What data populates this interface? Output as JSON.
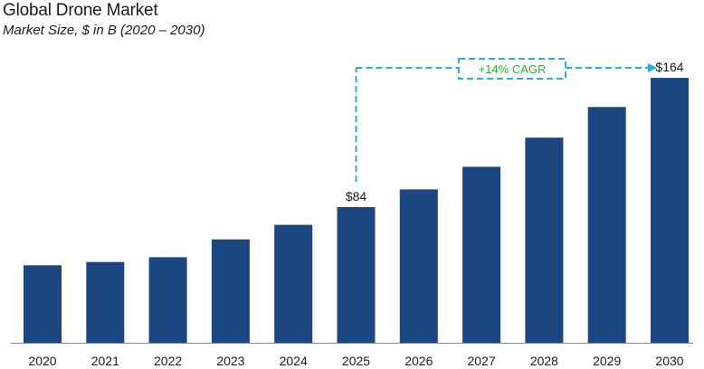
{
  "header": {
    "title": "Global Drone Market",
    "subtitle": "Market Size, $ in B (2020 – 2030)"
  },
  "chart_data": {
    "type": "bar",
    "title": "Global Drone Market",
    "subtitle": "Market Size, $ in B (2020 – 2030)",
    "xlabel": "",
    "ylabel": "",
    "grid": false,
    "legend": "none",
    "categories": [
      "2020",
      "2021",
      "2022",
      "2023",
      "2024",
      "2025",
      "2026",
      "2027",
      "2028",
      "2029",
      "2030"
    ],
    "values": [
      48,
      50,
      53,
      64,
      73,
      84,
      95,
      109,
      127,
      146,
      164
    ],
    "ylim": [
      0,
      168
    ],
    "bar_color": "#1c4680",
    "data_labels": [
      {
        "category": "2025",
        "text": "$84"
      },
      {
        "category": "2030",
        "text": "$164"
      }
    ],
    "annotations": [
      {
        "from": "2025",
        "to": "2030",
        "text": "+14% CAGR",
        "color": "#22b0df",
        "text_color": "#3aaa3a"
      }
    ]
  }
}
